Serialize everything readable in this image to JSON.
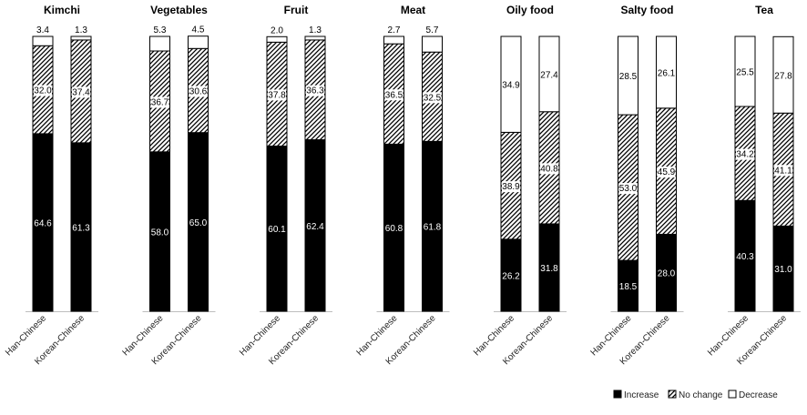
{
  "chart_data": {
    "type": "bar",
    "stacked": true,
    "ylim": [
      0,
      100
    ],
    "grid": false,
    "legend_position": "bottom-right",
    "categories": [
      "Han-Chinese",
      "Korean-Chinese"
    ],
    "series": [
      {
        "name": "Increase",
        "color": "#000000",
        "pattern": "solid"
      },
      {
        "name": "No change",
        "color": "#000000",
        "pattern": "diagonal-hatch"
      },
      {
        "name": "Decrease",
        "color": "#ffffff",
        "pattern": "none"
      }
    ],
    "panels": [
      {
        "title": "Kimchi",
        "bars": [
          {
            "category": "Han-Chinese",
            "increase": 64.6,
            "no_change": 32.0,
            "decrease": 3.4,
            "labels": {
              "increase": "64.6",
              "no_change": "32.0",
              "decrease": "3.4"
            }
          },
          {
            "category": "Korean-Chinese",
            "increase": 61.3,
            "no_change": 37.4,
            "decrease": 1.3,
            "labels": {
              "increase": "61.3",
              "no_change": "37.4",
              "decrease": "1.3"
            }
          }
        ]
      },
      {
        "title": "Vegetables",
        "bars": [
          {
            "category": "Han-Chinese",
            "increase": 58.0,
            "no_change": 36.7,
            "decrease": 5.3,
            "labels": {
              "increase": "58.0",
              "no_change": "36.7",
              "decrease": "5.3"
            }
          },
          {
            "category": "Korean-Chinese",
            "increase": 65.0,
            "no_change": 30.6,
            "decrease": 4.5,
            "labels": {
              "increase": "65.0",
              "no_change": "30.6",
              "decrease": "4.5"
            }
          }
        ]
      },
      {
        "title": "Fruit",
        "bars": [
          {
            "category": "Han-Chinese",
            "increase": 60.1,
            "no_change": 37.8,
            "decrease": 2.0,
            "labels": {
              "increase": "60.1",
              "no_change": "37.8",
              "decrease": "2.0"
            }
          },
          {
            "category": "Korean-Chinese",
            "increase": 62.4,
            "no_change": 36.3,
            "decrease": 1.3,
            "labels": {
              "increase": "62.4",
              "no_change": "36.3",
              "decrease": "1.3"
            }
          }
        ]
      },
      {
        "title": "Meat",
        "bars": [
          {
            "category": "Han-Chinese",
            "increase": 60.8,
            "no_change": 36.5,
            "decrease": 2.7,
            "labels": {
              "increase": "60.8",
              "no_change": "36.5",
              "decrease": "2.7"
            }
          },
          {
            "category": "Korean-Chinese",
            "increase": 61.8,
            "no_change": 32.5,
            "decrease": 5.7,
            "labels": {
              "increase": "61.8",
              "no_change": "32.5",
              "decrease": "5.7"
            }
          }
        ]
      },
      {
        "title": "Oily food",
        "bars": [
          {
            "category": "Han-Chinese",
            "increase": 26.2,
            "no_change": 38.9,
            "decrease": 34.9,
            "labels": {
              "increase": "26.2",
              "no_change": "38.9",
              "decrease": "34.9"
            }
          },
          {
            "category": "Korean-Chinese",
            "increase": 31.8,
            "no_change": 40.8,
            "decrease": 27.4,
            "labels": {
              "increase": "31.8",
              "no_change": "40.8",
              "decrease": "27.4"
            }
          }
        ]
      },
      {
        "title": "Salty food",
        "bars": [
          {
            "category": "Han-Chinese",
            "increase": 18.5,
            "no_change": 53.0,
            "decrease": 28.5,
            "labels": {
              "increase": "18.5",
              "no_change": "53.0",
              "decrease": "28.5"
            }
          },
          {
            "category": "Korean-Chinese",
            "increase": 28.0,
            "no_change": 45.9,
            "decrease": 26.1,
            "labels": {
              "increase": "28.0",
              "no_change": "45.9",
              "decrease": "26.1"
            }
          }
        ]
      },
      {
        "title": "Tea",
        "bars": [
          {
            "category": "Han-Chinese",
            "increase": 40.3,
            "no_change": 34.2,
            "decrease": 25.5,
            "labels": {
              "increase": "40.3",
              "no_change": "34.2",
              "decrease": "25.5"
            }
          },
          {
            "category": "Korean-Chinese",
            "increase": 31.0,
            "no_change": 41.1,
            "decrease": 27.8,
            "labels": {
              "increase": "31.0",
              "no_change": "41.1",
              "decrease": "27.8"
            }
          }
        ]
      }
    ]
  }
}
